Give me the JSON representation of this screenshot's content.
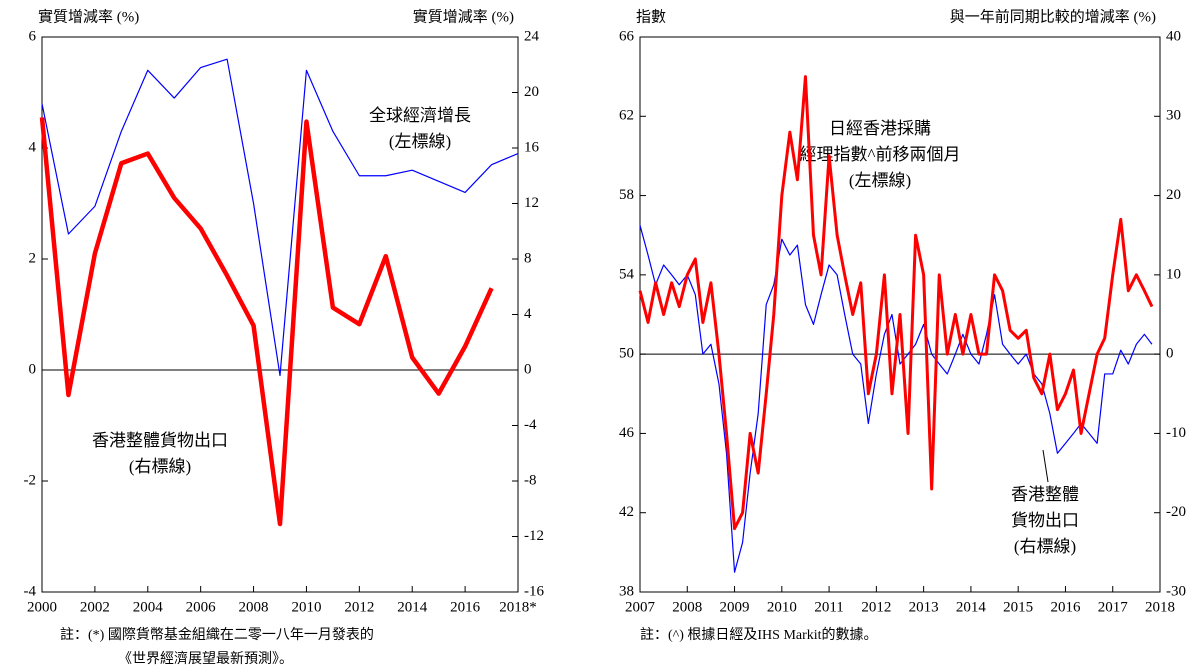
{
  "chart_data": [
    {
      "type": "line",
      "y_label": "實質增減率 (%)",
      "y2_label": "實質增減率 (%)",
      "x": [
        2000,
        2001,
        2002,
        2003,
        2004,
        2005,
        2006,
        2007,
        2008,
        2009,
        2010,
        2011,
        2012,
        2013,
        2014,
        2015,
        2016,
        2017,
        2018
      ],
      "xlim": [
        2000,
        2018
      ],
      "xticks": [
        2000,
        2002,
        2004,
        2006,
        2008,
        2010,
        2012,
        2014,
        2016,
        {
          "value": 2018,
          "label": "2018*"
        }
      ],
      "ylim": [
        -4,
        6
      ],
      "yticks": [
        -4,
        -2,
        0,
        2,
        4,
        6
      ],
      "y2lim": [
        -16,
        24
      ],
      "y2ticks": [
        -16,
        -12,
        -8,
        -4,
        0,
        4,
        8,
        12,
        16,
        20,
        24
      ],
      "series": [
        {
          "label_lines": [
            "全球經濟增長",
            "(左標線)"
          ],
          "color": "#0000ff",
          "axis": "y",
          "values": [
            4.8,
            2.45,
            2.95,
            4.3,
            5.4,
            4.9,
            5.45,
            5.6,
            3.0,
            -0.1,
            5.4,
            4.3,
            3.5,
            3.5,
            3.6,
            3.4,
            3.2,
            3.7,
            3.9
          ]
        },
        {
          "label_lines": [
            "香港整體貨物出口",
            "(右標線)"
          ],
          "color": "#ff0000",
          "axis": "y2",
          "values": [
            18.2,
            -1.8,
            8.4,
            14.9,
            15.6,
            12.4,
            10.2,
            6.8,
            3.2,
            -11.1,
            17.9,
            4.5,
            3.3,
            8.2,
            0.9,
            -1.7,
            1.7,
            5.9,
            null
          ]
        }
      ],
      "notes": [
        "註：(*) 國際貨幣基金組織在二零一八年一月發表的",
        "《世界經濟展望最新預測》。"
      ]
    },
    {
      "type": "line",
      "y_label": "指數",
      "y2_label": "與一年前同期比較的增減率 (%)",
      "x": [
        2007,
        2007.17,
        2007.33,
        2007.5,
        2007.67,
        2007.83,
        2008,
        2008.17,
        2008.33,
        2008.5,
        2008.67,
        2008.83,
        2009,
        2009.17,
        2009.33,
        2009.5,
        2009.67,
        2009.83,
        2010,
        2010.17,
        2010.33,
        2010.5,
        2010.67,
        2010.83,
        2011,
        2011.17,
        2011.33,
        2011.5,
        2011.67,
        2011.83,
        2012,
        2012.17,
        2012.33,
        2012.5,
        2012.67,
        2012.83,
        2013,
        2013.17,
        2013.33,
        2013.5,
        2013.67,
        2013.83,
        2014,
        2014.17,
        2014.33,
        2014.5,
        2014.67,
        2014.83,
        2015,
        2015.17,
        2015.33,
        2015.5,
        2015.67,
        2015.83,
        2016,
        2016.17,
        2016.33,
        2016.5,
        2016.67,
        2016.83,
        2017,
        2017.17,
        2017.33,
        2017.5,
        2017.67,
        2017.83
      ],
      "xlim": [
        2007,
        2018
      ],
      "xticks": [
        2007,
        2008,
        2009,
        2010,
        2011,
        2012,
        2013,
        2014,
        2015,
        2016,
        2017,
        2018
      ],
      "ylim": [
        38,
        66
      ],
      "yticks": [
        38,
        42,
        46,
        50,
        54,
        58,
        62,
        66
      ],
      "y2lim": [
        -30,
        40
      ],
      "y2ticks": [
        -30,
        -20,
        -10,
        0,
        10,
        20,
        30,
        40
      ],
      "series": [
        {
          "label_lines": [
            "日經香港採購",
            "經理指數^前移兩個月",
            "(左標線)"
          ],
          "color": "#0000ff",
          "axis": "y",
          "values": [
            56.5,
            55,
            53.5,
            54.5,
            54,
            53.5,
            54,
            53,
            50,
            50.5,
            48.5,
            45,
            39,
            40.5,
            44,
            47,
            52.5,
            53.5,
            55.8,
            55,
            55.5,
            52.5,
            51.5,
            53,
            54.5,
            54,
            52,
            50,
            49.5,
            46.5,
            49,
            51,
            52,
            49.5,
            50,
            50.5,
            51.5,
            50,
            49.5,
            49,
            50,
            51,
            50,
            49.5,
            51,
            53,
            50.5,
            50,
            49.5,
            50,
            49,
            48.5,
            47,
            45,
            45.5,
            46,
            46.5,
            46,
            45.5,
            49,
            49,
            50.2,
            49.5,
            50.5,
            51,
            50.5
          ]
        },
        {
          "label_lines": [
            "香港整體",
            "貨物出口",
            "(右標線)"
          ],
          "color": "#ff0000",
          "axis": "y2",
          "values": [
            8,
            4,
            9,
            5,
            9,
            6,
            10,
            12,
            4,
            9,
            0,
            -10,
            -22,
            -20,
            -10,
            -15,
            -5,
            5,
            20,
            28,
            22,
            35,
            15,
            10,
            25,
            15,
            10,
            5,
            9,
            -5,
            0,
            10,
            -5,
            5,
            -10,
            15,
            10,
            -17,
            10,
            0,
            5,
            0,
            5,
            0,
            0,
            10,
            8,
            3,
            2,
            3,
            -3,
            -5,
            0,
            -7,
            -5,
            -2,
            -10,
            -5,
            0,
            2,
            10,
            17,
            8,
            10,
            8,
            6
          ]
        }
      ],
      "notes": [
        "註：(^) 根據日經及IHS Markit的數據。"
      ]
    }
  ]
}
